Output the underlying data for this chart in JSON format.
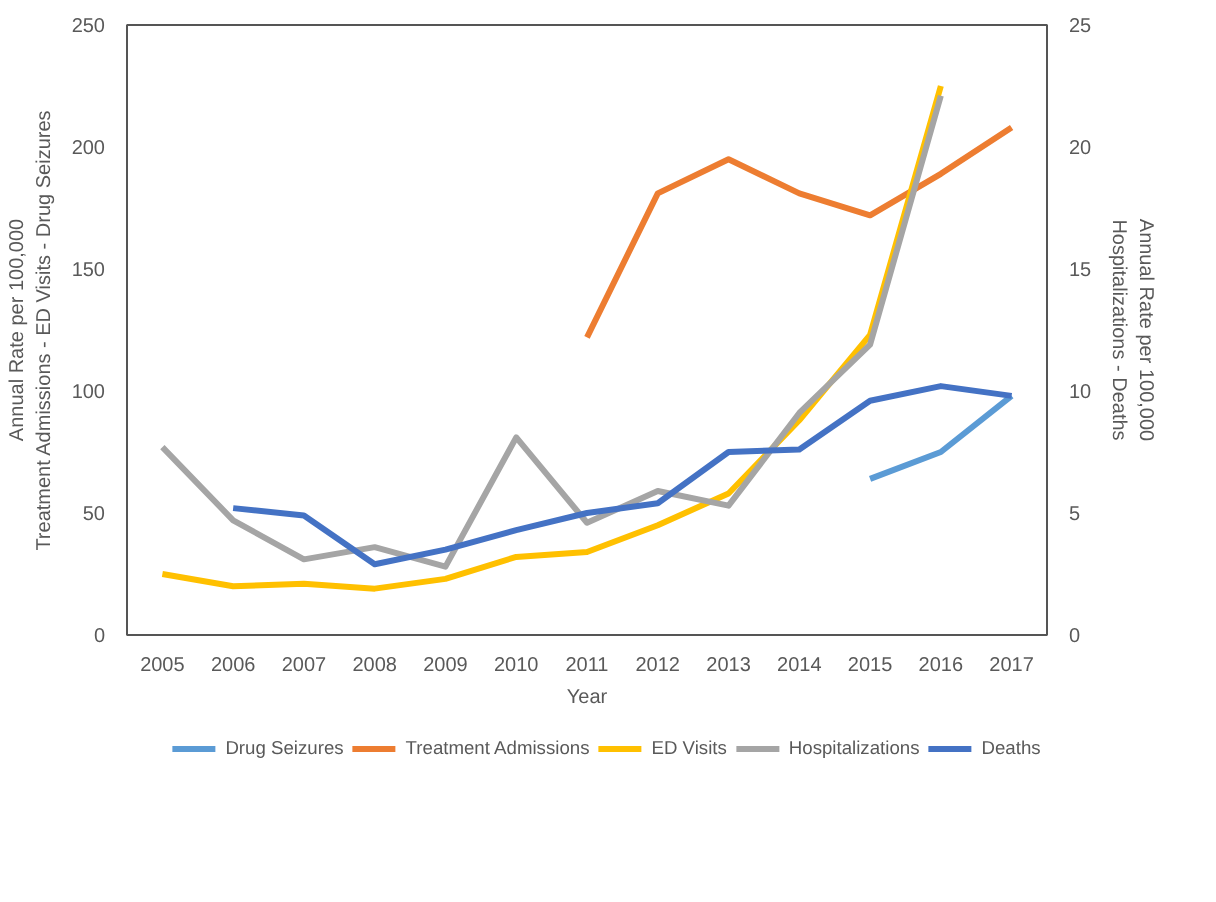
{
  "chart_data": {
    "type": "line",
    "xlabel": "Year",
    "ylabel": "Annual Rate per 100,000\nTreatment Admissions - ED Visits - Drug Seizures",
    "y2label": "Annual Rate per 100,000\nHospitalizations - Deaths",
    "categories": [
      "2005",
      "2006",
      "2007",
      "2008",
      "2009",
      "2010",
      "2011",
      "2012",
      "2013",
      "2014",
      "2015",
      "2016",
      "2017"
    ],
    "ylim": [
      0,
      250
    ],
    "yticks": [
      0,
      50,
      100,
      150,
      200,
      250
    ],
    "y2lim": [
      0,
      25
    ],
    "y2ticks": [
      0,
      5,
      10,
      15,
      20,
      25
    ],
    "grid": false,
    "legend": "bottom",
    "marker": "none",
    "line_style": "solid",
    "series": [
      {
        "name": "Drug Seizures",
        "color": "#5b9bd5",
        "values": [
          null,
          null,
          null,
          null,
          null,
          null,
          null,
          null,
          null,
          null,
          64,
          75,
          98
        ]
      },
      {
        "name": "Treatment Admissions",
        "color": "#ed7d31",
        "values": [
          null,
          null,
          null,
          null,
          null,
          null,
          122,
          181,
          195,
          181,
          172,
          189,
          208
        ]
      },
      {
        "name": "ED Visits",
        "color": "#ffc000",
        "values": [
          25,
          20,
          21,
          19,
          23,
          32,
          34,
          45,
          58,
          88,
          123,
          225,
          null
        ]
      },
      {
        "name": "Hospitalizations",
        "color": "#a5a5a5",
        "axis": "y2",
        "values": [
          7.7,
          4.7,
          3.1,
          3.6,
          2.8,
          8.1,
          4.6,
          5.9,
          5.3,
          9.1,
          11.9,
          22.1,
          null
        ]
      },
      {
        "name": "Deaths",
        "color": "#4472c4",
        "axis": "y2",
        "values": [
          null,
          5.2,
          4.9,
          2.9,
          3.5,
          4.3,
          5.0,
          5.4,
          7.5,
          7.6,
          9.6,
          10.2,
          9.8
        ]
      }
    ]
  }
}
